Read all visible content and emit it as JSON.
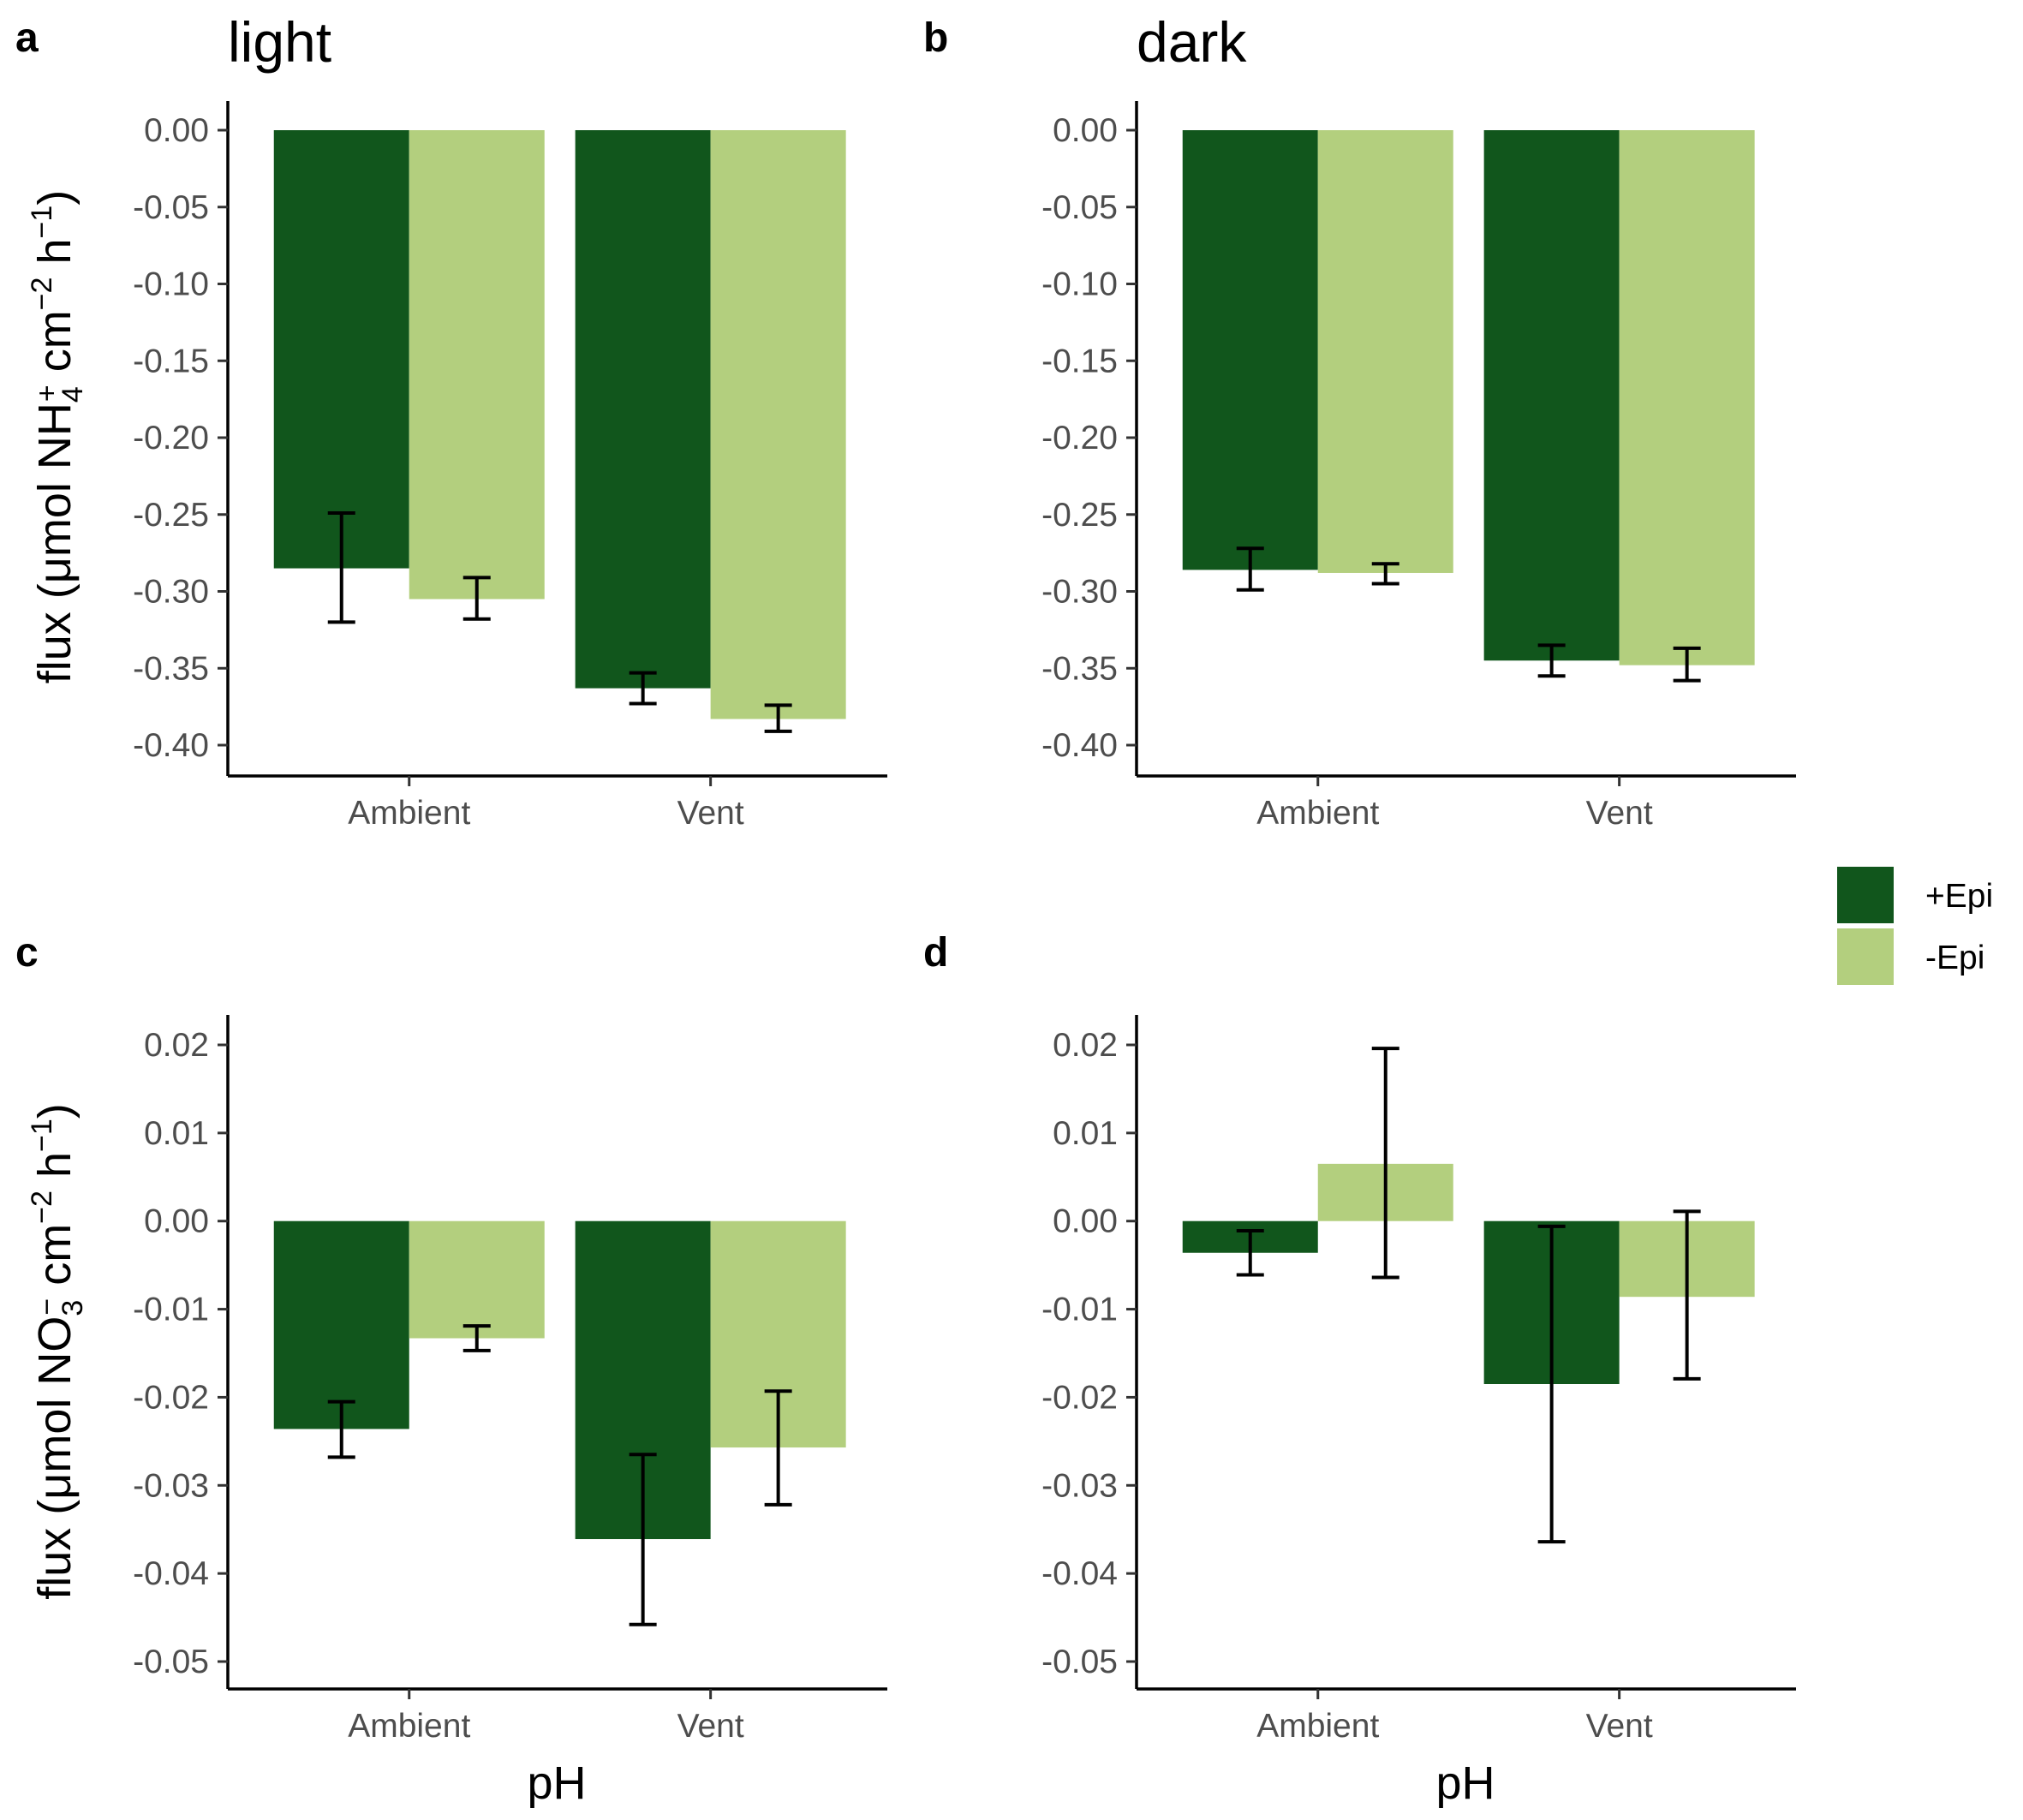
{
  "figure": {
    "ylabel_prefix": "flux (",
    "ylabel_mu": "μ",
    "ylabel_mol": "mol",
    "ylabel_top_species": "NH",
    "ylabel_top_sub": "4",
    "ylabel_top_sup": "+",
    "ylabel_bottom_species": "NO",
    "ylabel_bottom_sub": "3",
    "ylabel_bottom_sup": "−",
    "ylabel_unit_cm": "cm",
    "ylabel_unit_cm_exp": "−2",
    "ylabel_unit_h": "h",
    "ylabel_unit_h_exp": "−1",
    "ylabel_suffix": ")",
    "xlabel": "pH",
    "colors": {
      "+Epi": "#11561c",
      "-Epi": "#b3cf7e"
    }
  },
  "legend": {
    "placement": "right",
    "items": [
      {
        "label": "+Epi",
        "color": "#11561c"
      },
      {
        "label": "-Epi",
        "color": "#b3cf7e"
      }
    ]
  },
  "chart_data": [
    {
      "panel": "a",
      "title": "light",
      "type": "bar",
      "categories": [
        "Ambient",
        "Vent"
      ],
      "ylim": [
        -0.4,
        0.0
      ],
      "yticks": [
        "0.00",
        "-0.05",
        "-0.10",
        "-0.15",
        "-0.20",
        "-0.25",
        "-0.30",
        "-0.35",
        "-0.40"
      ],
      "ytick_values": [
        0.0,
        -0.05,
        -0.1,
        -0.15,
        -0.2,
        -0.25,
        -0.3,
        -0.35,
        -0.4
      ],
      "series": [
        {
          "name": "+Epi",
          "values": [
            -0.285,
            -0.363
          ],
          "err_low": [
            -0.32,
            -0.373
          ],
          "err_high": [
            -0.249,
            -0.353
          ]
        },
        {
          "name": "-Epi",
          "values": [
            -0.305,
            -0.383
          ],
          "err_low": [
            -0.318,
            -0.391
          ],
          "err_high": [
            -0.291,
            -0.374
          ]
        }
      ],
      "grid": false
    },
    {
      "panel": "b",
      "title": "dark",
      "type": "bar",
      "categories": [
        "Ambient",
        "Vent"
      ],
      "ylim": [
        -0.4,
        0.0
      ],
      "yticks": [
        "0.00",
        "-0.05",
        "-0.10",
        "-0.15",
        "-0.20",
        "-0.25",
        "-0.30",
        "-0.35",
        "-0.40"
      ],
      "ytick_values": [
        0.0,
        -0.05,
        -0.1,
        -0.15,
        -0.2,
        -0.25,
        -0.3,
        -0.35,
        -0.4
      ],
      "series": [
        {
          "name": "+Epi",
          "values": [
            -0.286,
            -0.345
          ],
          "err_low": [
            -0.299,
            -0.355
          ],
          "err_high": [
            -0.272,
            -0.335
          ]
        },
        {
          "name": "-Epi",
          "values": [
            -0.288,
            -0.348
          ],
          "err_low": [
            -0.295,
            -0.358
          ],
          "err_high": [
            -0.282,
            -0.337
          ]
        }
      ],
      "grid": false
    },
    {
      "panel": "c",
      "title": "",
      "type": "bar",
      "categories": [
        "Ambient",
        "Vent"
      ],
      "ylim": [
        -0.05,
        0.02
      ],
      "yticks": [
        "0.02",
        "0.01",
        "0.00",
        "-0.01",
        "-0.02",
        "-0.03",
        "-0.04",
        "-0.05"
      ],
      "ytick_values": [
        0.02,
        0.01,
        0.0,
        -0.01,
        -0.02,
        -0.03,
        -0.04,
        -0.05
      ],
      "series": [
        {
          "name": "+Epi",
          "values": [
            -0.0236,
            -0.0361
          ],
          "err_low": [
            -0.0268,
            -0.0458
          ],
          "err_high": [
            -0.0205,
            -0.0265
          ]
        },
        {
          "name": "-Epi",
          "values": [
            -0.0133,
            -0.0257
          ],
          "err_low": [
            -0.0147,
            -0.0322
          ],
          "err_high": [
            -0.0119,
            -0.0193
          ]
        }
      ],
      "grid": false
    },
    {
      "panel": "d",
      "title": "",
      "type": "bar",
      "categories": [
        "Ambient",
        "Vent"
      ],
      "ylim": [
        -0.05,
        0.02
      ],
      "yticks": [
        "0.02",
        "0.01",
        "0.00",
        "-0.01",
        "-0.02",
        "-0.03",
        "-0.04",
        "-0.05"
      ],
      "ytick_values": [
        0.02,
        0.01,
        0.0,
        -0.01,
        -0.02,
        -0.03,
        -0.04,
        -0.05
      ],
      "series": [
        {
          "name": "+Epi",
          "values": [
            -0.0036,
            -0.0185
          ],
          "err_low": [
            -0.0061,
            -0.0364
          ],
          "err_high": [
            -0.0011,
            -0.0006
          ]
        },
        {
          "name": "-Epi",
          "values": [
            0.0065,
            -0.0086
          ],
          "err_low": [
            -0.0064,
            -0.0179
          ],
          "err_high": [
            0.0196,
            0.0011
          ]
        }
      ],
      "grid": false
    }
  ]
}
